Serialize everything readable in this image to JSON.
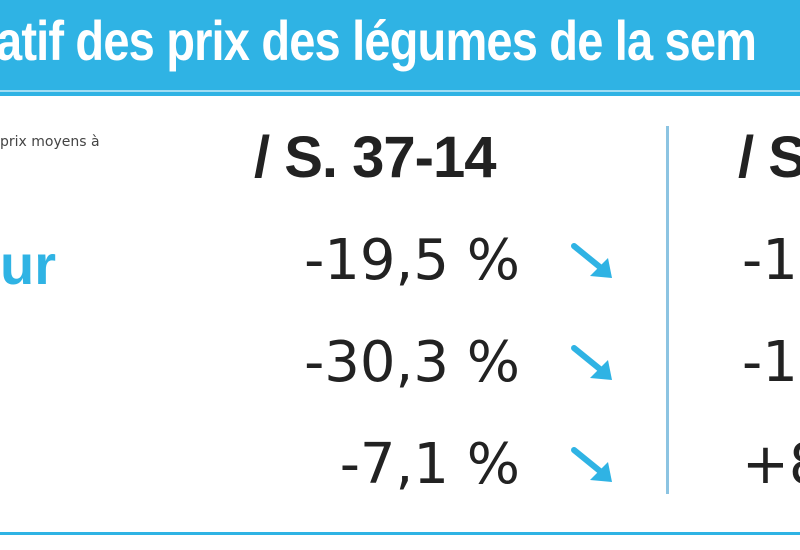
{
  "title": "atif des prix des légumes de la sem",
  "note": "prix moyens à",
  "columns": [
    "/ S. 37-14",
    "/ S"
  ],
  "rows": [
    {
      "label": "ur",
      "values": [
        "-19,5 %",
        "-1"
      ],
      "trend_icon": "arrow-down-right-icon"
    },
    {
      "label": "",
      "values": [
        "-30,3 %",
        "-1"
      ],
      "trend_icon": "arrow-down-right-icon"
    },
    {
      "label": "",
      "values": [
        "-7,1 %",
        "+8"
      ],
      "trend_icon": "arrow-down-right-icon"
    }
  ],
  "colors": {
    "accent": "#2fb3e4",
    "text": "#222222",
    "divider": "#8cc4e2"
  }
}
